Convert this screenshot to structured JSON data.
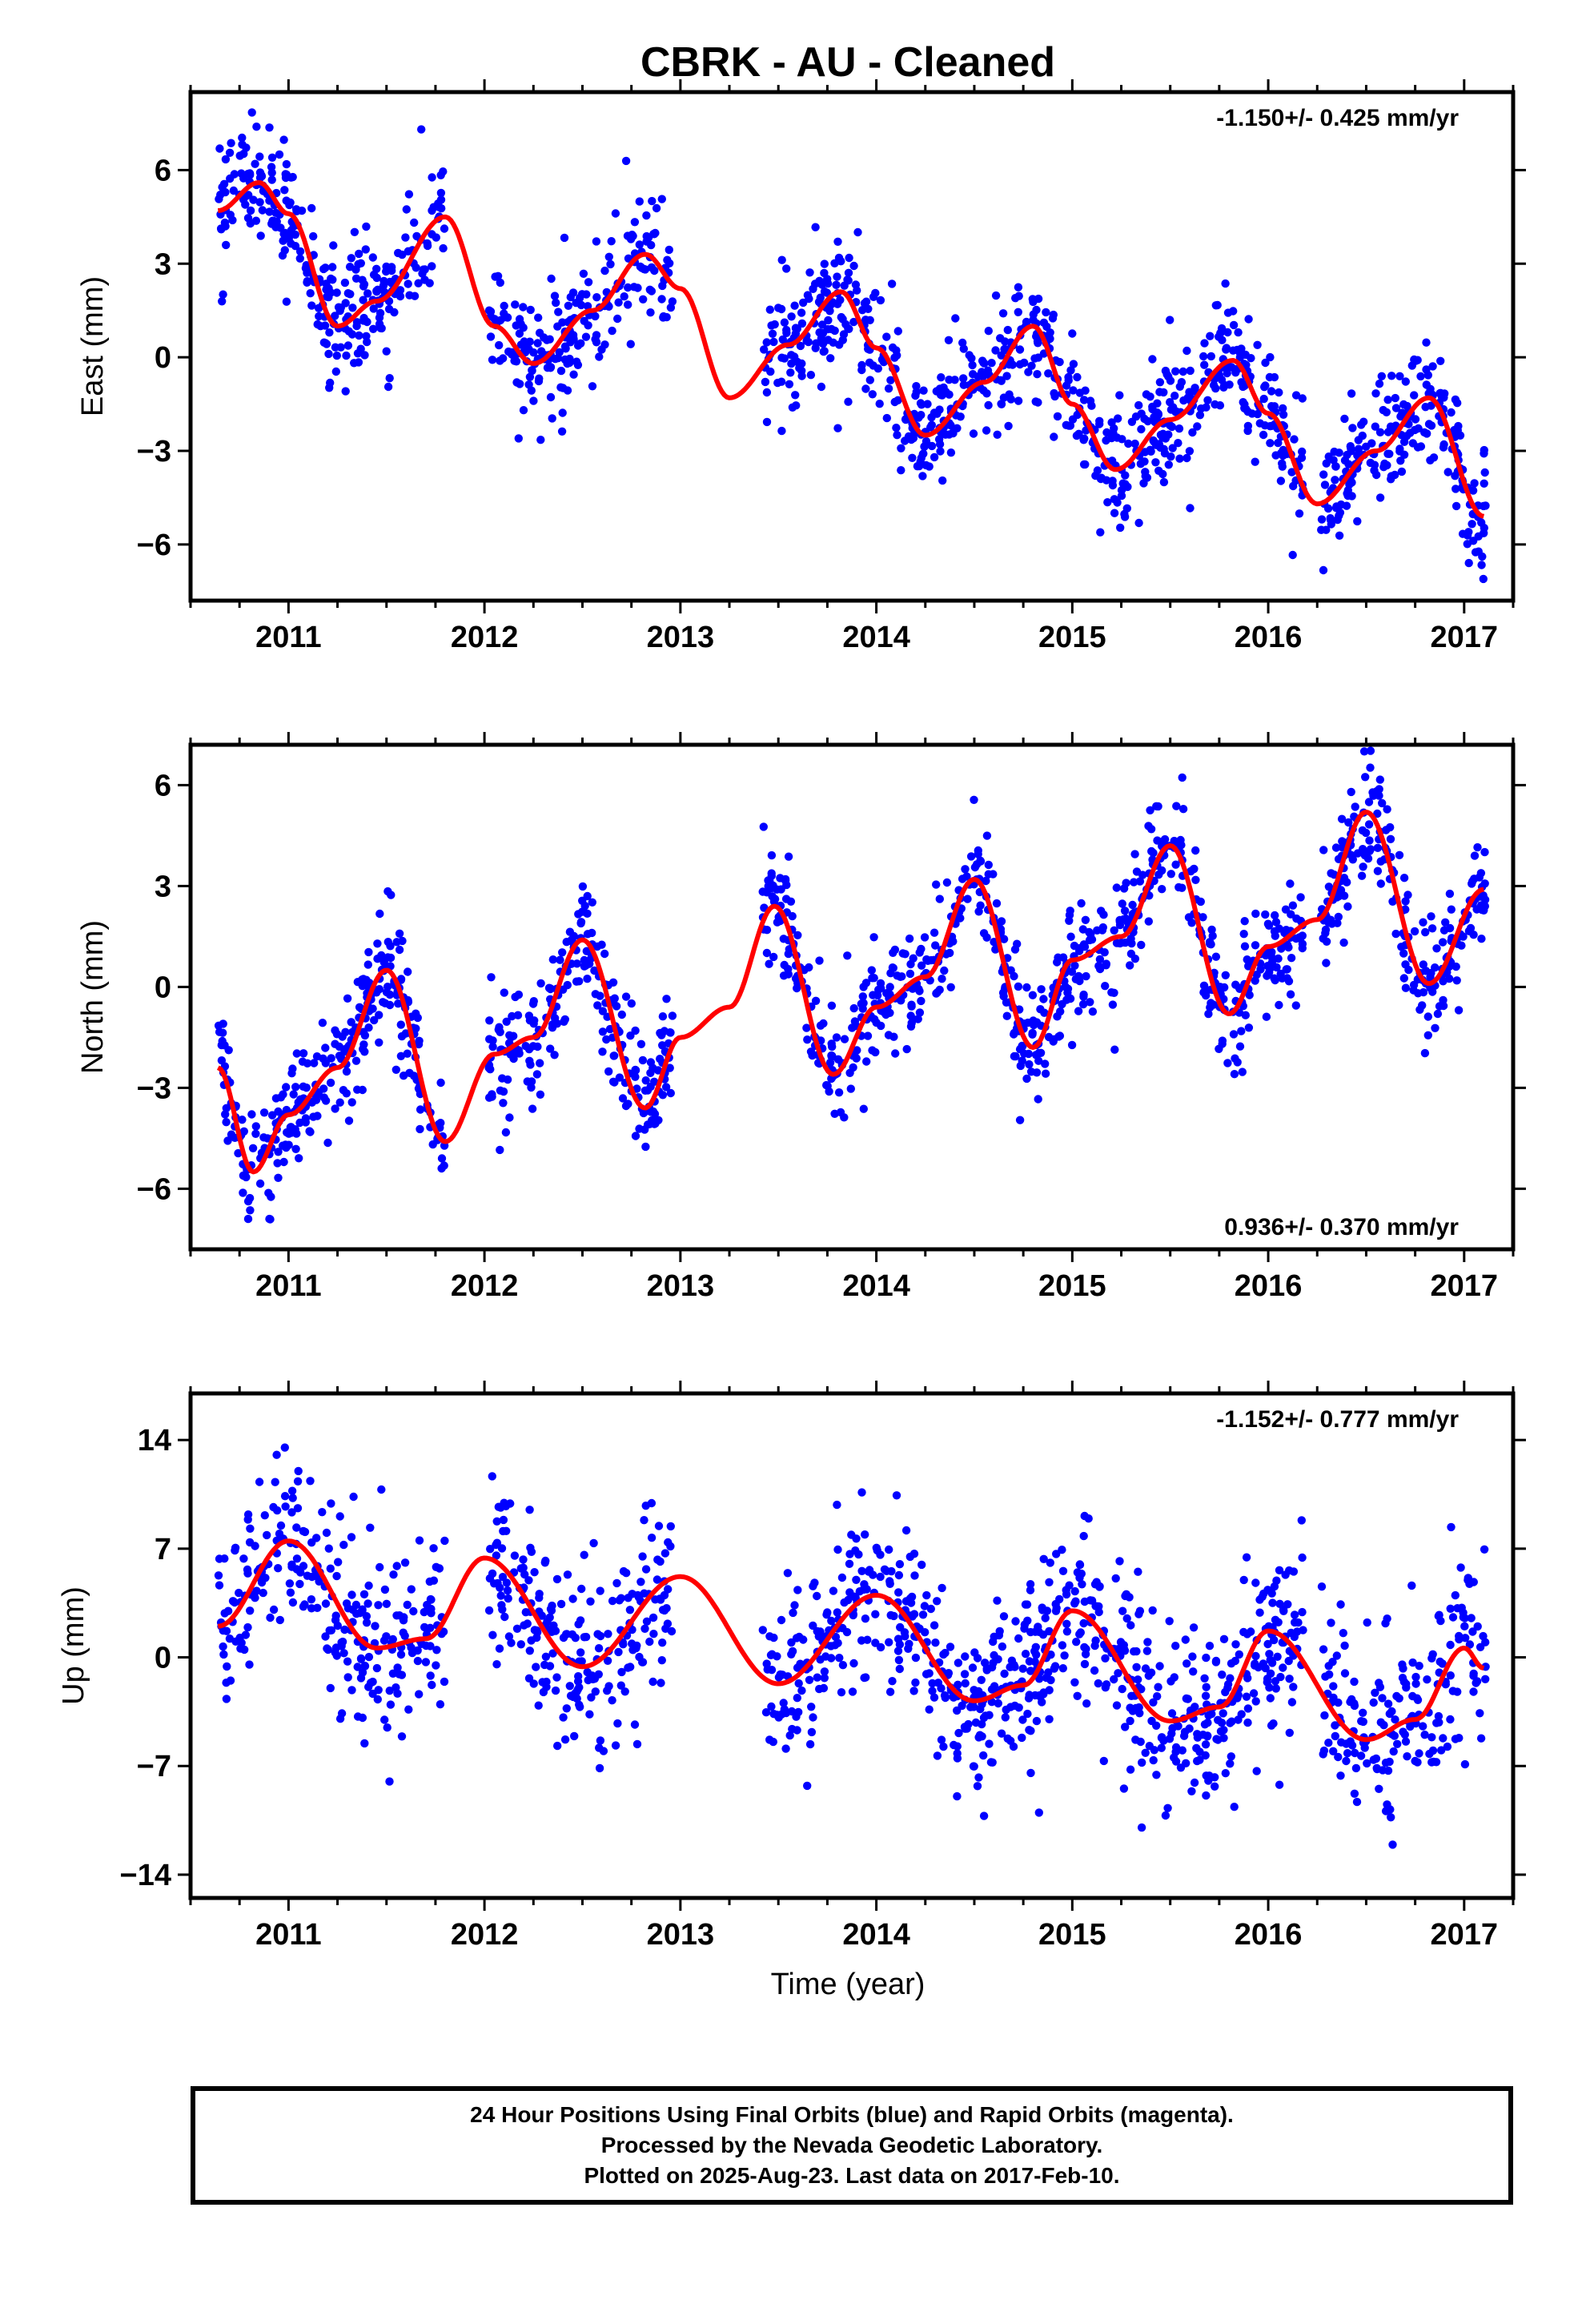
{
  "title": "CBRK  - AU - Cleaned",
  "xlabel": "Time (year)",
  "colors": {
    "points": "#0000ff",
    "fit": "#ff0000",
    "frame": "#000000"
  },
  "footer": {
    "lines": [
      "24 Hour Positions Using Final Orbits (blue) and Rapid Orbits (magenta).",
      "Processed by the Nevada Geodetic Laboratory.",
      "Plotted on 2025-Aug-23. Last data on 2017-Feb-10."
    ]
  },
  "chart_data": [
    {
      "type": "scatter",
      "component": "east",
      "ylabel": "East (mm)",
      "rate_label": "-1.150+/- 0.425 mm/yr",
      "rate_position": "top-right",
      "xlim": [
        2010.5,
        2017.25
      ],
      "ylim": [
        -7.8,
        8.5
      ],
      "xticks": [
        2011,
        2012,
        2013,
        2014,
        2015,
        2016,
        2017
      ],
      "xtick_labels": [
        "2011",
        "2012",
        "2013",
        "2014",
        "2015",
        "2016",
        "2017"
      ],
      "yticks": [
        -6,
        -3,
        0,
        3,
        6
      ],
      "ytick_labels": [
        "−6",
        "−3",
        "0",
        "3",
        "6"
      ],
      "data_segments": [
        [
          2010.64,
          2011.8
        ],
        [
          2012.02,
          2012.96
        ],
        [
          2013.42,
          2015.18
        ],
        [
          2015.2,
          2016.18
        ],
        [
          2016.27,
          2017.11
        ]
      ],
      "fit_curve": [
        [
          2010.64,
          4.7
        ],
        [
          2010.85,
          5.6
        ],
        [
          2011.0,
          4.6
        ],
        [
          2011.25,
          1.0
        ],
        [
          2011.45,
          1.8
        ],
        [
          2011.8,
          4.5
        ],
        [
          2012.05,
          1.0
        ],
        [
          2012.25,
          -0.2
        ],
        [
          2012.55,
          1.5
        ],
        [
          2012.82,
          3.3
        ],
        [
          2013.0,
          2.2
        ],
        [
          2013.25,
          -1.3
        ],
        [
          2013.55,
          0.4
        ],
        [
          2013.82,
          2.1
        ],
        [
          2014.0,
          0.3
        ],
        [
          2014.25,
          -2.5
        ],
        [
          2014.55,
          -0.8
        ],
        [
          2014.8,
          1.0
        ],
        [
          2015.0,
          -1.5
        ],
        [
          2015.22,
          -3.6
        ],
        [
          2015.5,
          -2.0
        ],
        [
          2015.82,
          -0.1
        ],
        [
          2016.0,
          -1.8
        ],
        [
          2016.25,
          -4.7
        ],
        [
          2016.55,
          -3.0
        ],
        [
          2016.82,
          -1.3
        ],
        [
          2017.1,
          -5.1
        ]
      ],
      "spread": 1.25,
      "n_points": 1400
    },
    {
      "type": "scatter",
      "component": "north",
      "ylabel": "North (mm)",
      "rate_label": "0.936+/- 0.370 mm/yr",
      "rate_position": "bottom-right",
      "xlim": [
        2010.5,
        2017.25
      ],
      "ylim": [
        -7.8,
        7.2
      ],
      "xticks": [
        2011,
        2012,
        2013,
        2014,
        2015,
        2016,
        2017
      ],
      "xtick_labels": [
        "2011",
        "2012",
        "2013",
        "2014",
        "2015",
        "2016",
        "2017"
      ],
      "yticks": [
        -6,
        -3,
        0,
        3,
        6
      ],
      "ytick_labels": [
        "−6",
        "−3",
        "0",
        "3",
        "6"
      ],
      "data_segments": [
        [
          2010.64,
          2011.8
        ],
        [
          2012.02,
          2012.96
        ],
        [
          2013.42,
          2015.18
        ],
        [
          2015.2,
          2016.18
        ],
        [
          2016.27,
          2017.11
        ]
      ],
      "fit_curve": [
        [
          2010.64,
          -2.4
        ],
        [
          2010.82,
          -5.5
        ],
        [
          2011.0,
          -3.8
        ],
        [
          2011.25,
          -2.4
        ],
        [
          2011.5,
          0.5
        ],
        [
          2011.8,
          -4.6
        ],
        [
          2012.05,
          -2.0
        ],
        [
          2012.25,
          -1.5
        ],
        [
          2012.5,
          1.4
        ],
        [
          2012.82,
          -3.6
        ],
        [
          2013.0,
          -1.5
        ],
        [
          2013.25,
          -0.6
        ],
        [
          2013.48,
          2.4
        ],
        [
          2013.78,
          -2.6
        ],
        [
          2014.0,
          -0.6
        ],
        [
          2014.25,
          0.3
        ],
        [
          2014.5,
          3.2
        ],
        [
          2014.8,
          -1.8
        ],
        [
          2015.0,
          0.8
        ],
        [
          2015.25,
          1.5
        ],
        [
          2015.5,
          4.2
        ],
        [
          2015.8,
          -0.8
        ],
        [
          2016.0,
          1.2
        ],
        [
          2016.25,
          2.0
        ],
        [
          2016.5,
          5.2
        ],
        [
          2016.82,
          0.1
        ],
        [
          2017.1,
          2.9
        ]
      ],
      "spread": 1.1,
      "n_points": 1400
    },
    {
      "type": "scatter",
      "component": "up",
      "ylabel": "Up (mm)",
      "rate_label": "-1.152+/- 0.777 mm/yr",
      "rate_position": "top-right",
      "xlim": [
        2010.5,
        2017.25
      ],
      "ylim": [
        -15.5,
        17.0
      ],
      "xticks": [
        2011,
        2012,
        2013,
        2014,
        2015,
        2016,
        2017
      ],
      "xtick_labels": [
        "2011",
        "2012",
        "2013",
        "2014",
        "2015",
        "2016",
        "2017"
      ],
      "yticks": [
        -14,
        -7,
        0,
        7,
        14
      ],
      "ytick_labels": [
        "−14",
        "−7",
        "0",
        "7",
        "14"
      ],
      "data_segments": [
        [
          2010.64,
          2011.8
        ],
        [
          2012.02,
          2012.96
        ],
        [
          2013.42,
          2015.18
        ],
        [
          2015.2,
          2016.18
        ],
        [
          2016.27,
          2017.11
        ]
      ],
      "fit_curve": [
        [
          2010.64,
          2.0
        ],
        [
          2011.0,
          7.5
        ],
        [
          2011.45,
          0.6
        ],
        [
          2011.7,
          1.2
        ],
        [
          2012.0,
          6.4
        ],
        [
          2012.5,
          -0.6
        ],
        [
          2013.0,
          5.2
        ],
        [
          2013.5,
          -1.7
        ],
        [
          2014.0,
          4.0
        ],
        [
          2014.5,
          -2.8
        ],
        [
          2014.75,
          -1.8
        ],
        [
          2015.0,
          3.0
        ],
        [
          2015.5,
          -4.1
        ],
        [
          2015.75,
          -3.2
        ],
        [
          2016.0,
          1.7
        ],
        [
          2016.5,
          -5.3
        ],
        [
          2016.75,
          -4.0
        ],
        [
          2017.0,
          0.6
        ],
        [
          2017.1,
          -0.7
        ]
      ],
      "spread": 3.6,
      "n_points": 1400
    }
  ]
}
